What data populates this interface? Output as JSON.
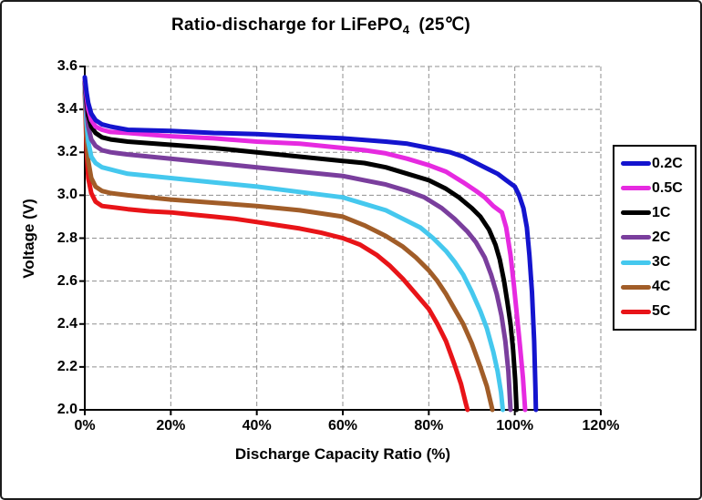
{
  "figure": {
    "title": {
      "main": "Ratio-discharge for LiFePO",
      "sub": "4",
      "suffix": "(25℃)"
    }
  },
  "chart_data": {
    "type": "line",
    "title": "Ratio-discharge for LiFePO4 (25℃)",
    "xlabel": "Discharge Capacity Ratio (%)",
    "ylabel": "Voltage (V)",
    "xlim": [
      0,
      120
    ],
    "ylim": [
      2.0,
      3.6
    ],
    "x_ticks": [
      0,
      20,
      40,
      60,
      80,
      100,
      120
    ],
    "x_tick_labels": [
      "0%",
      "20%",
      "40%",
      "60%",
      "80%",
      "100%",
      "120%"
    ],
    "y_ticks": [
      2.0,
      2.2,
      2.4,
      2.6,
      2.8,
      3.0,
      3.2,
      3.4,
      3.6
    ],
    "y_tick_labels": [
      "2.0",
      "2.2",
      "2.4",
      "2.6",
      "2.8",
      "3.0",
      "3.2",
      "3.4",
      "3.6"
    ],
    "grid": "dashed",
    "legend_position": "right",
    "series": [
      {
        "name": "0.2C",
        "color": "#1414CE",
        "points": [
          [
            0,
            3.55
          ],
          [
            0.4,
            3.48
          ],
          [
            0.8,
            3.43
          ],
          [
            1.5,
            3.38
          ],
          [
            2.5,
            3.35
          ],
          [
            4,
            3.33
          ],
          [
            6,
            3.32
          ],
          [
            10,
            3.305
          ],
          [
            20,
            3.3
          ],
          [
            30,
            3.29
          ],
          [
            40,
            3.285
          ],
          [
            50,
            3.275
          ],
          [
            60,
            3.265
          ],
          [
            70,
            3.25
          ],
          [
            75,
            3.24
          ],
          [
            80,
            3.22
          ],
          [
            85,
            3.2
          ],
          [
            88,
            3.18
          ],
          [
            91,
            3.15
          ],
          [
            94,
            3.12
          ],
          [
            96,
            3.1
          ],
          [
            98,
            3.07
          ],
          [
            100,
            3.04
          ],
          [
            101,
            3.0
          ],
          [
            102,
            2.94
          ],
          [
            102.8,
            2.85
          ],
          [
            103.4,
            2.72
          ],
          [
            104,
            2.55
          ],
          [
            104.5,
            2.32
          ],
          [
            104.8,
            2.1
          ],
          [
            104.9,
            2.0
          ]
        ]
      },
      {
        "name": "0.5C",
        "color": "#E62AE0",
        "points": [
          [
            0,
            3.54
          ],
          [
            0.4,
            3.46
          ],
          [
            0.8,
            3.4
          ],
          [
            1.5,
            3.35
          ],
          [
            2.5,
            3.32
          ],
          [
            4,
            3.305
          ],
          [
            6,
            3.295
          ],
          [
            10,
            3.29
          ],
          [
            20,
            3.275
          ],
          [
            30,
            3.265
          ],
          [
            40,
            3.25
          ],
          [
            50,
            3.24
          ],
          [
            60,
            3.22
          ],
          [
            65,
            3.21
          ],
          [
            70,
            3.195
          ],
          [
            75,
            3.17
          ],
          [
            80,
            3.14
          ],
          [
            84,
            3.11
          ],
          [
            88,
            3.06
          ],
          [
            91,
            3.02
          ],
          [
            93,
            2.99
          ],
          [
            95,
            2.95
          ],
          [
            97,
            2.92
          ],
          [
            98,
            2.85
          ],
          [
            99,
            2.72
          ],
          [
            99.8,
            2.58
          ],
          [
            100.5,
            2.44
          ],
          [
            101.2,
            2.3
          ],
          [
            101.9,
            2.15
          ],
          [
            102.4,
            2.0
          ]
        ]
      },
      {
        "name": "1C",
        "color": "#000000",
        "points": [
          [
            0,
            3.53
          ],
          [
            0.4,
            3.44
          ],
          [
            0.8,
            3.37
          ],
          [
            1.5,
            3.32
          ],
          [
            2.5,
            3.29
          ],
          [
            4,
            3.27
          ],
          [
            6,
            3.26
          ],
          [
            10,
            3.25
          ],
          [
            20,
            3.235
          ],
          [
            30,
            3.22
          ],
          [
            40,
            3.2
          ],
          [
            50,
            3.18
          ],
          [
            60,
            3.16
          ],
          [
            65,
            3.15
          ],
          [
            70,
            3.13
          ],
          [
            75,
            3.1
          ],
          [
            80,
            3.07
          ],
          [
            84,
            3.03
          ],
          [
            87,
            2.99
          ],
          [
            90,
            2.94
          ],
          [
            92,
            2.9
          ],
          [
            94,
            2.84
          ],
          [
            95.5,
            2.77
          ],
          [
            96.5,
            2.7
          ],
          [
            97.5,
            2.6
          ],
          [
            98.3,
            2.5
          ],
          [
            99,
            2.4
          ],
          [
            99.6,
            2.28
          ],
          [
            100.1,
            2.14
          ],
          [
            100.4,
            2.0
          ]
        ]
      },
      {
        "name": "2C",
        "color": "#7A3E9D",
        "points": [
          [
            0,
            3.52
          ],
          [
            0.4,
            3.4
          ],
          [
            0.8,
            3.32
          ],
          [
            1.5,
            3.26
          ],
          [
            2.5,
            3.23
          ],
          [
            4,
            3.21
          ],
          [
            6,
            3.2
          ],
          [
            10,
            3.19
          ],
          [
            20,
            3.17
          ],
          [
            30,
            3.15
          ],
          [
            40,
            3.13
          ],
          [
            50,
            3.11
          ],
          [
            60,
            3.09
          ],
          [
            65,
            3.07
          ],
          [
            70,
            3.05
          ],
          [
            75,
            3.02
          ],
          [
            79,
            2.99
          ],
          [
            83,
            2.94
          ],
          [
            86,
            2.89
          ],
          [
            89,
            2.83
          ],
          [
            91,
            2.78
          ],
          [
            93,
            2.71
          ],
          [
            94.5,
            2.63
          ],
          [
            95.8,
            2.54
          ],
          [
            96.9,
            2.44
          ],
          [
            97.8,
            2.32
          ],
          [
            98.5,
            2.18
          ],
          [
            99,
            2.0
          ]
        ]
      },
      {
        "name": "3C",
        "color": "#45C8EE",
        "points": [
          [
            0,
            3.51
          ],
          [
            0.4,
            3.34
          ],
          [
            0.8,
            3.25
          ],
          [
            1.5,
            3.18
          ],
          [
            2.5,
            3.15
          ],
          [
            4,
            3.13
          ],
          [
            6,
            3.12
          ],
          [
            10,
            3.1
          ],
          [
            20,
            3.08
          ],
          [
            30,
            3.06
          ],
          [
            40,
            3.04
          ],
          [
            50,
            3.015
          ],
          [
            60,
            2.99
          ],
          [
            65,
            2.96
          ],
          [
            70,
            2.93
          ],
          [
            74,
            2.89
          ],
          [
            78,
            2.85
          ],
          [
            81,
            2.8
          ],
          [
            84,
            2.74
          ],
          [
            86,
            2.69
          ],
          [
            88,
            2.63
          ],
          [
            90,
            2.55
          ],
          [
            92,
            2.46
          ],
          [
            93.5,
            2.38
          ],
          [
            95,
            2.27
          ],
          [
            96,
            2.18
          ],
          [
            96.8,
            2.08
          ],
          [
            97.2,
            2.0
          ]
        ]
      },
      {
        "name": "4C",
        "color": "#A15D28",
        "points": [
          [
            0,
            3.5
          ],
          [
            0.4,
            3.28
          ],
          [
            0.8,
            3.16
          ],
          [
            1.5,
            3.08
          ],
          [
            2.5,
            3.04
          ],
          [
            4,
            3.02
          ],
          [
            6,
            3.01
          ],
          [
            10,
            3.0
          ],
          [
            15,
            2.99
          ],
          [
            20,
            2.98
          ],
          [
            30,
            2.965
          ],
          [
            40,
            2.95
          ],
          [
            50,
            2.93
          ],
          [
            55,
            2.915
          ],
          [
            60,
            2.9
          ],
          [
            65,
            2.86
          ],
          [
            70,
            2.81
          ],
          [
            74,
            2.76
          ],
          [
            77,
            2.71
          ],
          [
            80,
            2.65
          ],
          [
            82,
            2.6
          ],
          [
            84,
            2.54
          ],
          [
            86,
            2.47
          ],
          [
            88,
            2.4
          ],
          [
            90,
            2.31
          ],
          [
            92,
            2.2
          ],
          [
            93.5,
            2.11
          ],
          [
            94.8,
            2.0
          ]
        ]
      },
      {
        "name": "5C",
        "color": "#E81418",
        "points": [
          [
            0,
            3.49
          ],
          [
            0.4,
            3.22
          ],
          [
            0.8,
            3.08
          ],
          [
            1.5,
            3.01
          ],
          [
            2.5,
            2.97
          ],
          [
            4,
            2.95
          ],
          [
            6,
            2.945
          ],
          [
            10,
            2.935
          ],
          [
            15,
            2.925
          ],
          [
            20,
            2.92
          ],
          [
            25,
            2.91
          ],
          [
            30,
            2.9
          ],
          [
            35,
            2.89
          ],
          [
            40,
            2.875
          ],
          [
            45,
            2.86
          ],
          [
            50,
            2.845
          ],
          [
            55,
            2.825
          ],
          [
            60,
            2.8
          ],
          [
            64,
            2.77
          ],
          [
            68,
            2.72
          ],
          [
            71,
            2.67
          ],
          [
            74,
            2.61
          ],
          [
            77,
            2.54
          ],
          [
            80,
            2.47
          ],
          [
            82,
            2.4
          ],
          [
            84,
            2.32
          ],
          [
            86,
            2.21
          ],
          [
            87.5,
            2.12
          ],
          [
            88.6,
            2.03
          ],
          [
            89,
            2.0
          ]
        ]
      }
    ]
  }
}
